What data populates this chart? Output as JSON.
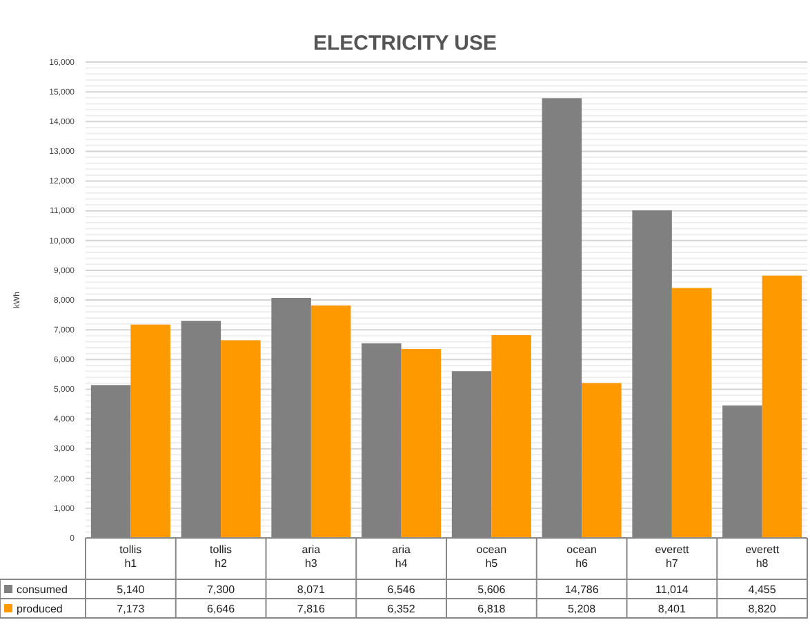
{
  "chart_data": {
    "type": "bar",
    "title": "ELECTRICITY USE",
    "ylabel": "kWh",
    "categories": [
      "tollis\nh1",
      "tollis\nh2",
      "aria\nh3",
      "aria\nh4",
      "ocean\nh5",
      "ocean\nh6",
      "everett\nh7",
      "everett\nh8"
    ],
    "series": [
      {
        "name": "consumed",
        "color": "#808080",
        "values": [
          5140,
          7300,
          8071,
          6546,
          5606,
          14786,
          11014,
          4455
        ],
        "value_labels": [
          "5,140",
          "7,300",
          "8,071",
          "6,546",
          "5,606",
          "14,786",
          "11,014",
          "4,455"
        ]
      },
      {
        "name": "produced",
        "color": "#ff9900",
        "values": [
          7173,
          6646,
          7816,
          6352,
          6818,
          5208,
          8401,
          8820
        ],
        "value_labels": [
          "7,173",
          "6,646",
          "7,816",
          "6,352",
          "6,818",
          "5,208",
          "8,401",
          "8,820"
        ]
      }
    ],
    "ylim": [
      0,
      16000
    ],
    "yticks": [
      {
        "value": 0,
        "label": "0"
      },
      {
        "value": 1000,
        "label": "1,000"
      },
      {
        "value": 2000,
        "label": "2,000"
      },
      {
        "value": 3000,
        "label": "3,000"
      },
      {
        "value": 4000,
        "label": "4,000"
      },
      {
        "value": 5000,
        "label": "5,000"
      },
      {
        "value": 6000,
        "label": "6,000"
      },
      {
        "value": 7000,
        "label": "7,000"
      },
      {
        "value": 8000,
        "label": "8,000"
      },
      {
        "value": 9000,
        "label": "9,000"
      },
      {
        "value": 10000,
        "label": "10,000"
      },
      {
        "value": 11000,
        "label": "11,000"
      },
      {
        "value": 12000,
        "label": "12,000"
      },
      {
        "value": 13000,
        "label": "13,000"
      },
      {
        "value": 14000,
        "label": "14,000"
      },
      {
        "value": 15000,
        "label": "15,000"
      },
      {
        "value": 16000,
        "label": "16,000"
      }
    ],
    "grid": "y",
    "legend": "bottom"
  }
}
